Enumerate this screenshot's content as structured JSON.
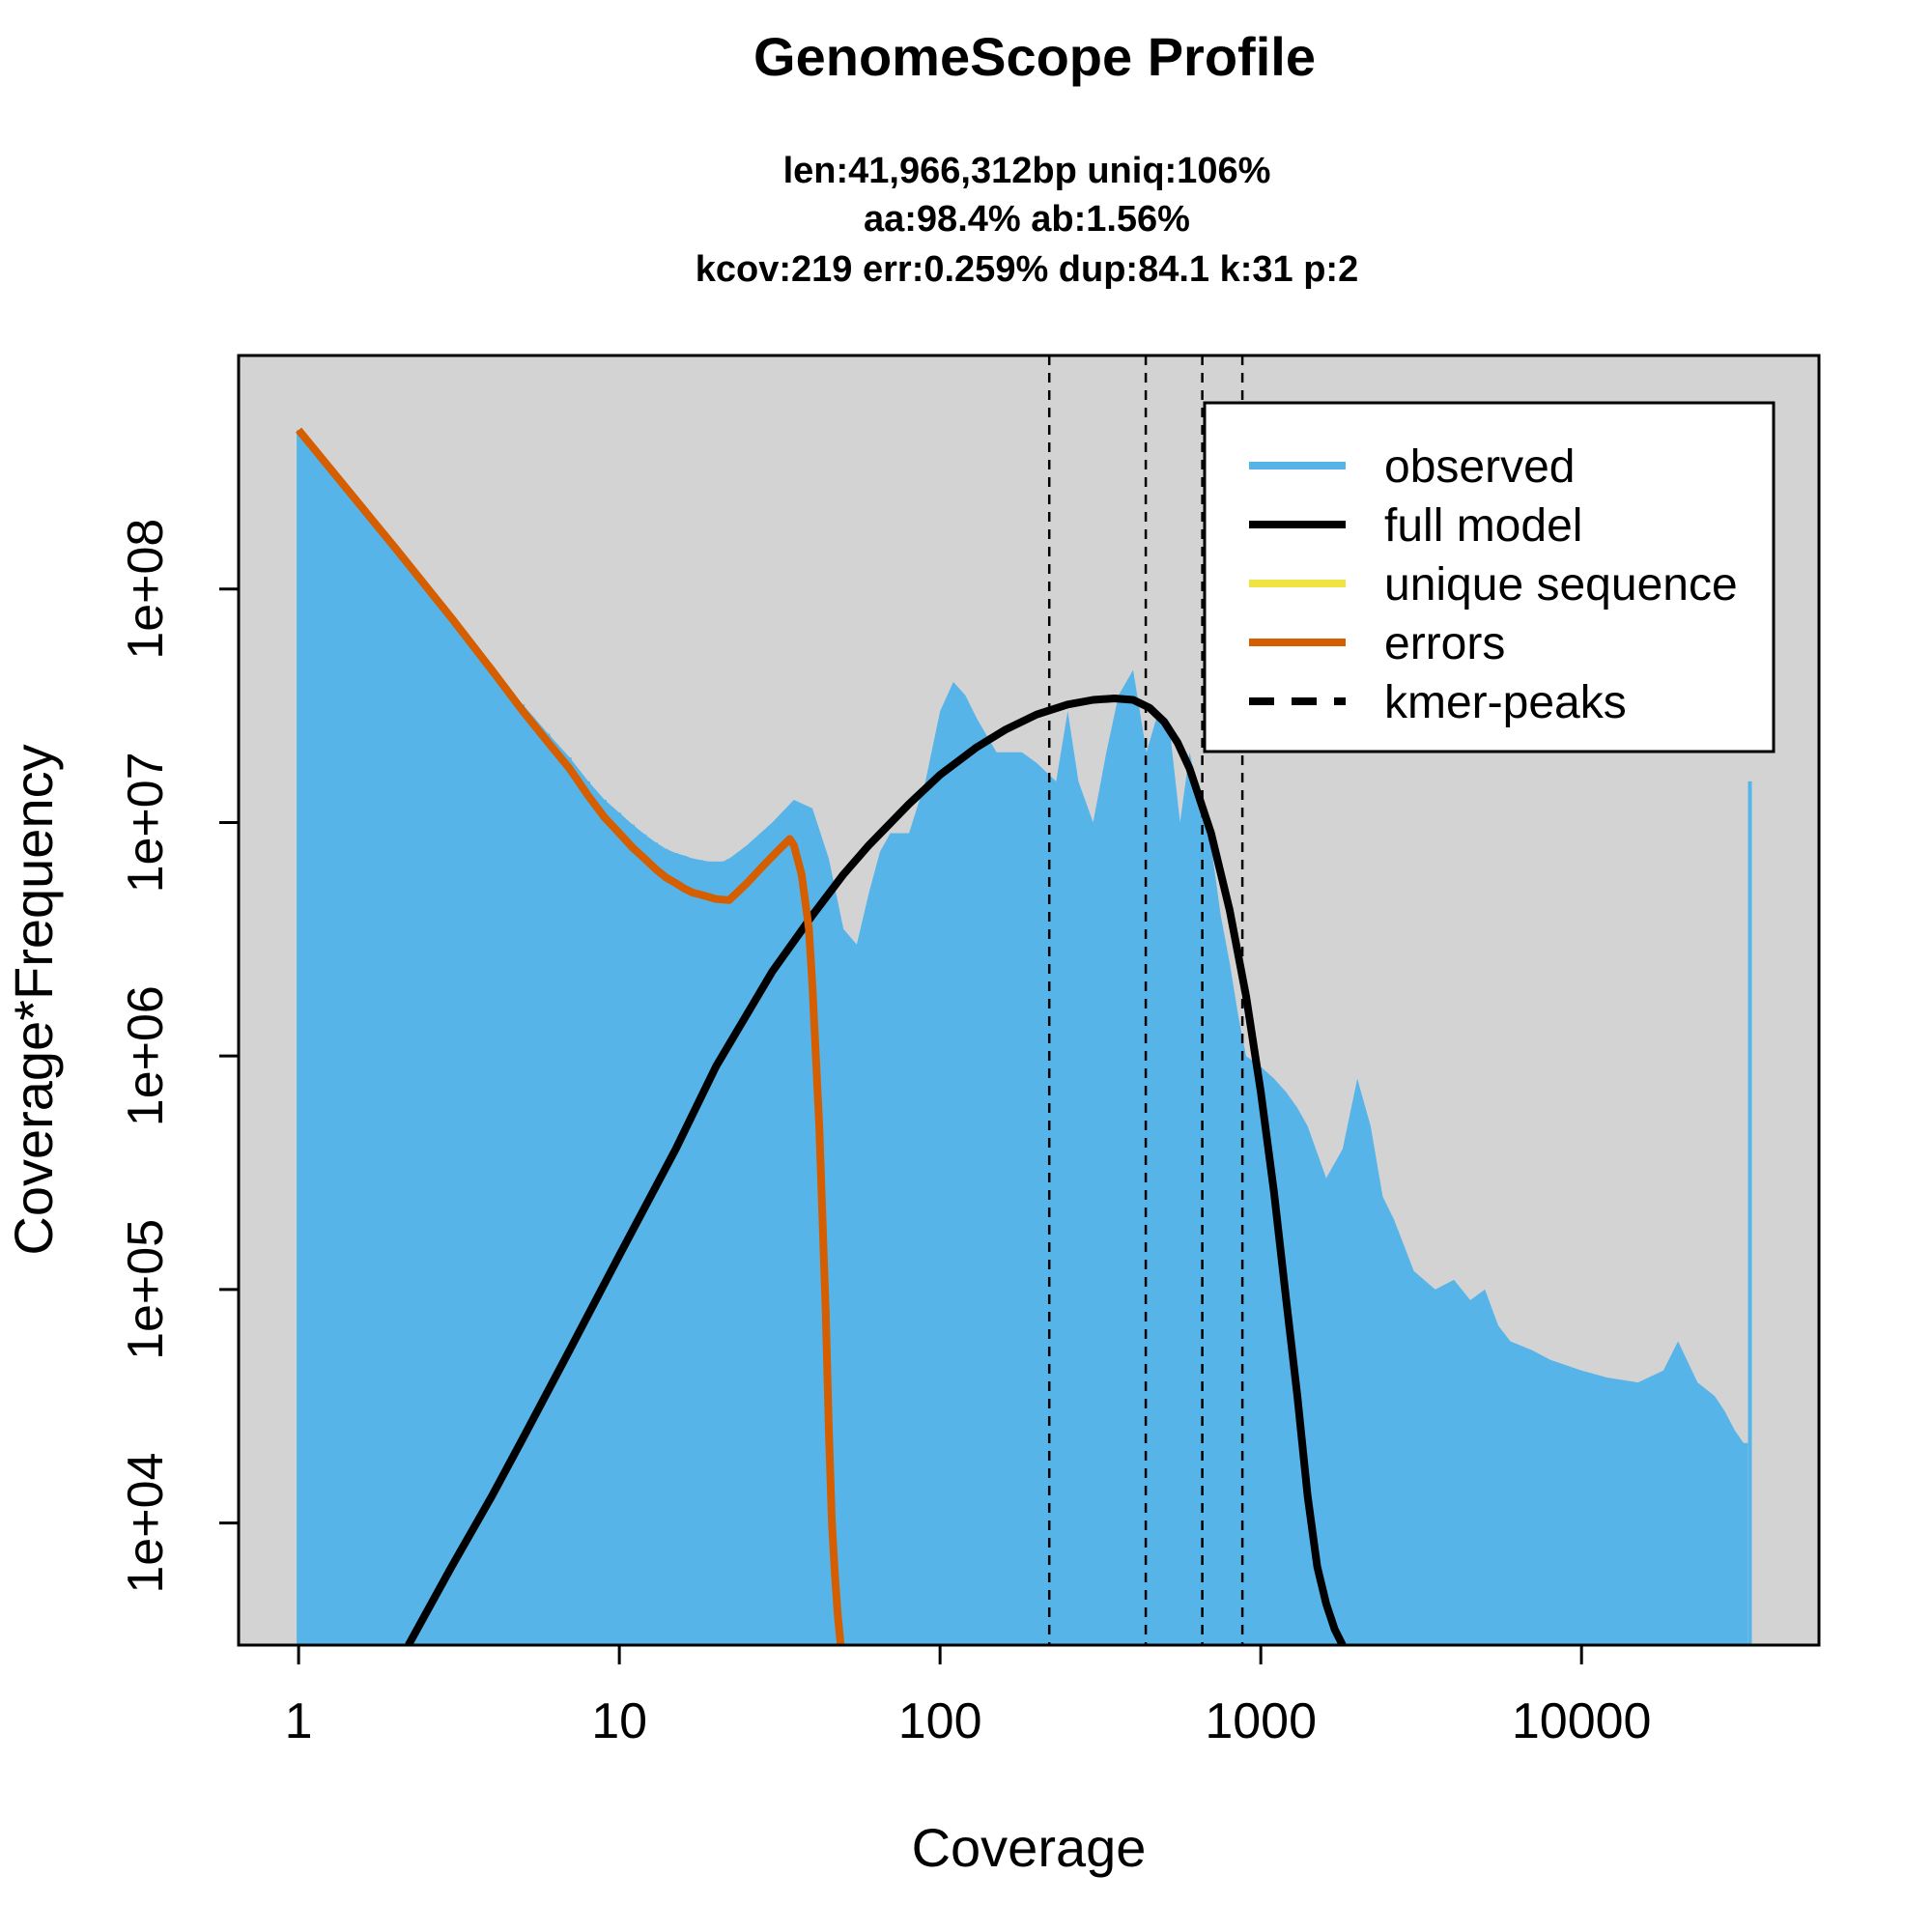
{
  "chart_data": {
    "type": "line",
    "title": "GenomeScope Profile",
    "subtitle_lines": [
      "len:41,966,312bp uniq:106%",
      "aa:98.4% ab:1.56%",
      "kcov:219 err:0.259%  dup:84.1  k:31 p:2"
    ],
    "xlabel": "Coverage",
    "ylabel": "Coverage*Frequency",
    "x_scale": "log",
    "y_scale": "log",
    "xlim": [
      0.65,
      55000
    ],
    "ylim": [
      3000,
      1000000000
    ],
    "x_ticks": [
      1,
      10,
      100,
      1000,
      10000
    ],
    "x_tick_labels": [
      "1",
      "10",
      "100",
      "1000",
      "10000"
    ],
    "y_ticks": [
      10000,
      100000,
      1000000,
      10000000,
      100000000
    ],
    "y_tick_labels": [
      "1e+04",
      "1e+05",
      "1e+06",
      "1e+07",
      "1e+08"
    ],
    "background": "#d3d3d3",
    "grid": false,
    "legend_position": "top-right",
    "series": [
      {
        "name": "observed",
        "style": "histogram",
        "color": "#56b4e9",
        "x": [
          1,
          2,
          3,
          4,
          5,
          6,
          7,
          8,
          9,
          10,
          11,
          12,
          13,
          14,
          15,
          16,
          17,
          18,
          19,
          20,
          21,
          22,
          25,
          30,
          35,
          40,
          45,
          50,
          55,
          60,
          65,
          70,
          80,
          90,
          100,
          110,
          120,
          130,
          150,
          180,
          200,
          230,
          250,
          270,
          300,
          330,
          360,
          400,
          440,
          480,
          520,
          560,
          600,
          650,
          700,
          750,
          800,
          850,
          900,
          1000,
          1100,
          1200,
          1300,
          1400,
          1600,
          1800,
          2000,
          2200,
          2400,
          2600,
          3000,
          3500,
          4000,
          4500,
          5000,
          5500,
          6000,
          7000,
          8000,
          10000,
          12000,
          15000,
          18000,
          20000,
          23000,
          26000,
          28000,
          30000,
          32000,
          33000,
          33500
        ],
        "y": [
          480000000,
          150000000,
          75000000,
          45000000,
          32000000,
          24000000,
          19000000,
          15000000,
          12500000,
          11000000,
          9800000,
          8900000,
          8200000,
          7700000,
          7400000,
          7200000,
          7000000,
          6900000,
          6800000,
          6800000,
          6800000,
          7000000,
          8000000,
          10000000,
          12500000,
          11500000,
          7000000,
          3500000,
          3000000,
          5000000,
          7500000,
          9000000,
          9000000,
          15000000,
          30000000,
          40000000,
          35000000,
          28000000,
          20000000,
          20000000,
          18000000,
          15000000,
          30000000,
          15000000,
          10000000,
          20000000,
          35000000,
          45000000,
          20000000,
          30000000,
          25000000,
          10000000,
          20000000,
          12000000,
          8000000,
          4000000,
          2500000,
          1500000,
          1000000,
          900000,
          800000,
          700000,
          600000,
          500000,
          300000,
          400000,
          800000,
          500000,
          250000,
          200000,
          120000,
          100000,
          110000,
          90000,
          100000,
          70000,
          60000,
          55000,
          50000,
          45000,
          42000,
          40000,
          45000,
          60000,
          40000,
          35000,
          30000,
          25000,
          22000,
          22000,
          15000000
        ]
      },
      {
        "name": "full model",
        "style": "line",
        "color": "#000000",
        "x": [
          2.2,
          3,
          4,
          5,
          7,
          10,
          15,
          20,
          30,
          40,
          50,
          60,
          80,
          100,
          130,
          160,
          200,
          250,
          300,
          350,
          400,
          450,
          500,
          550,
          600,
          700,
          800,
          900,
          1000,
          1100,
          1200,
          1300,
          1400,
          1500,
          1600,
          1700,
          1800
        ],
        "y": [
          3000,
          6500,
          13000,
          23000,
          55000,
          140000,
          400000,
          900000,
          2300000,
          4000000,
          6000000,
          8000000,
          12000000,
          16000000,
          21000000,
          25000000,
          29000000,
          32000000,
          33500000,
          34000000,
          33500000,
          31000000,
          27000000,
          22000000,
          17000000,
          9000000,
          4200000,
          1800000,
          700000,
          260000,
          90000,
          35000,
          13000,
          6500,
          4500,
          3500,
          3000
        ]
      },
      {
        "name": "unique sequence",
        "style": "line",
        "color": "#f0e442",
        "x": [],
        "y": []
      },
      {
        "name": "errors",
        "style": "line",
        "color": "#d55e00",
        "x": [
          1,
          2,
          3,
          4,
          5,
          6,
          7,
          8,
          9,
          10,
          11,
          12,
          13,
          14,
          15,
          16,
          17,
          18,
          19,
          20,
          22,
          25,
          28,
          31,
          34,
          35,
          37,
          39,
          40,
          42,
          44,
          45,
          46,
          47,
          48,
          49
        ],
        "y": [
          480000000,
          150000000,
          75000000,
          45000000,
          30000000,
          22000000,
          17000000,
          13000000,
          10500000,
          9000000,
          7800000,
          7000000,
          6300000,
          5800000,
          5500000,
          5200000,
          5000000,
          4900000,
          4800000,
          4700000,
          4650000,
          5500000,
          6500000,
          7500000,
          8500000,
          8000000,
          6000000,
          3500000,
          2000000,
          500000,
          80000,
          25000,
          10000,
          6000,
          4000,
          3000
        ]
      },
      {
        "name": "kmer-peaks",
        "style": "vline-dashed",
        "color": "#000000",
        "x": [
          219,
          438,
          657,
          876
        ]
      }
    ]
  }
}
